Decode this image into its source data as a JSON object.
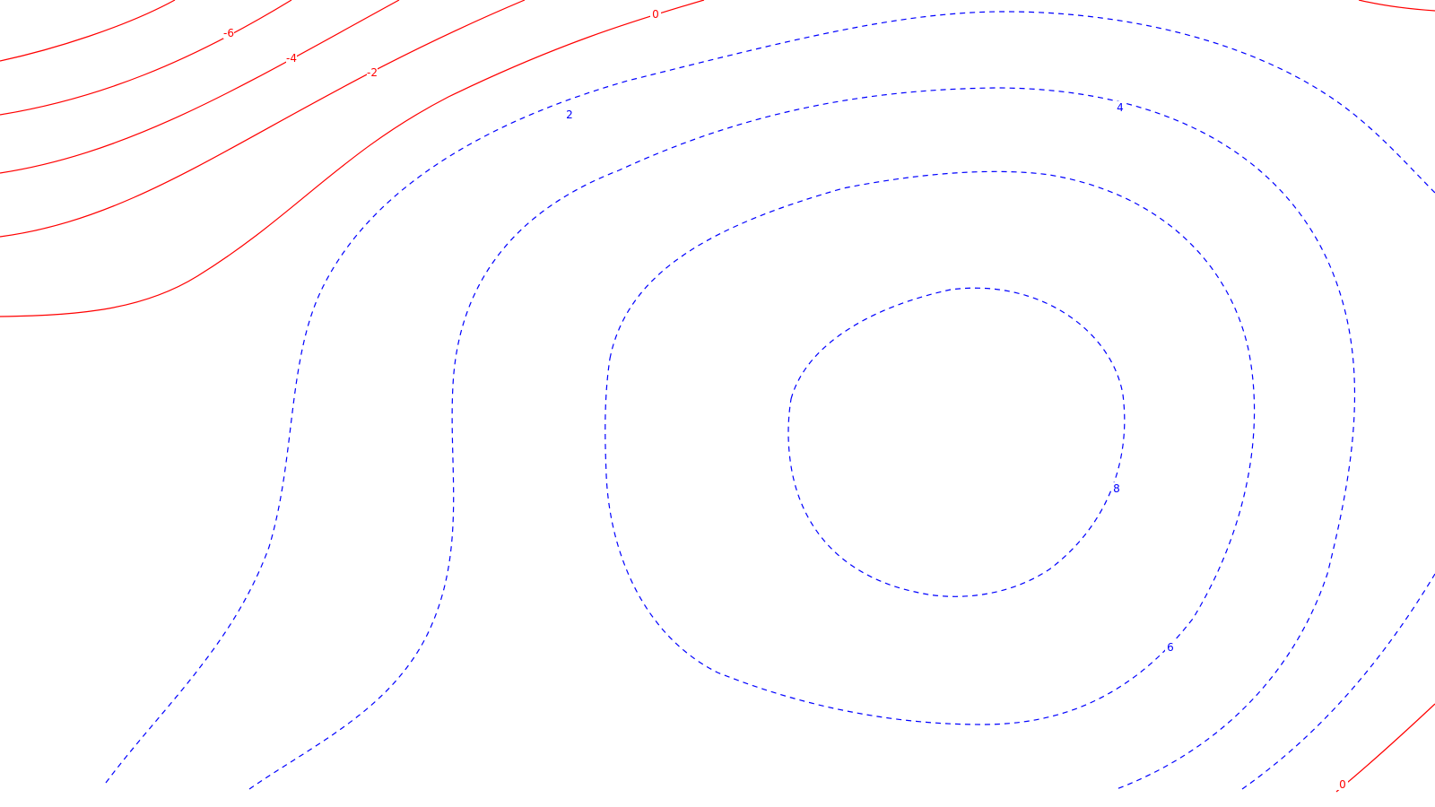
{
  "chart_data": {
    "type": "contour",
    "title": "",
    "xlabel": "",
    "ylabel": "",
    "grid": false,
    "levels": [
      {
        "value": -8,
        "label": "",
        "style": "solid",
        "color": "#ff0000"
      },
      {
        "value": -6,
        "label": "-6",
        "style": "solid",
        "color": "#ff0000"
      },
      {
        "value": -4,
        "label": "-4",
        "style": "solid",
        "color": "#ff0000"
      },
      {
        "value": -2,
        "label": "-2",
        "style": "solid",
        "color": "#ff0000"
      },
      {
        "value": 0,
        "label": "0",
        "style": "solid",
        "color": "#ff0000"
      },
      {
        "value": 2,
        "label": "2",
        "style": "dashed",
        "color": "#0000ff"
      },
      {
        "value": 4,
        "label": "4",
        "style": "dashed",
        "color": "#0000ff"
      },
      {
        "value": 6,
        "label": "6",
        "style": "dashed",
        "color": "#0000ff"
      },
      {
        "value": 8,
        "label": "8",
        "style": "dashed",
        "color": "#0000ff"
      }
    ],
    "colors": {
      "negative": "#ff0000",
      "positive": "#0000ff",
      "background": "#ffffff"
    }
  }
}
